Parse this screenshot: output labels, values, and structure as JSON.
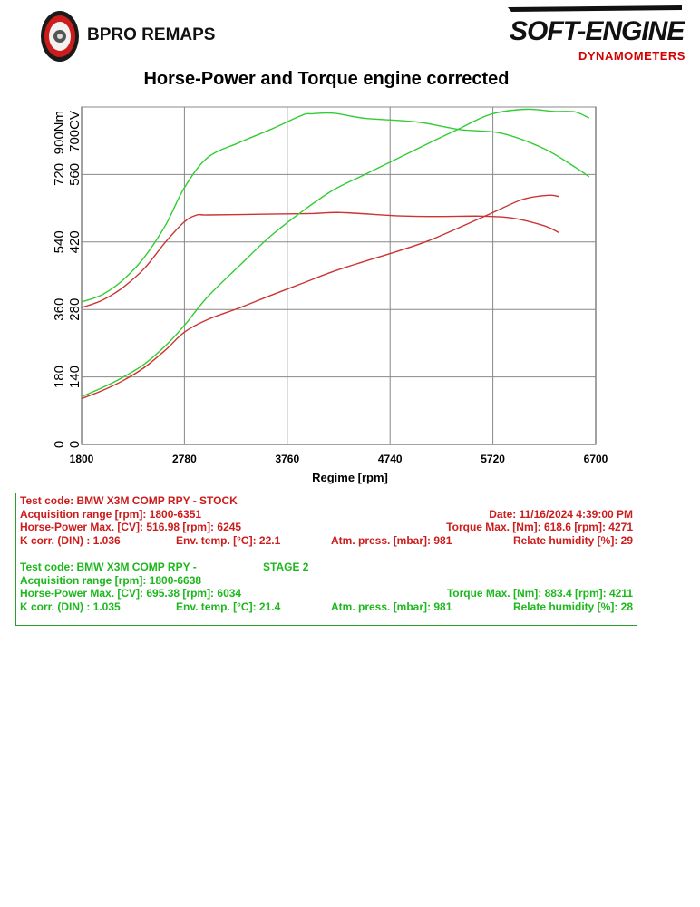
{
  "header": {
    "left_logo_text": "BPRO REMAPS",
    "right_logo_text": "SOFT-ENGINE",
    "right_logo_sub": "DYNAMOMETERS"
  },
  "chart_data": {
    "type": "line",
    "title": "Horse-Power and Torque engine corrected",
    "xlabel": "Regime [rpm]",
    "ylabel_torque": "900Nm",
    "ylabel_power": "700CV",
    "xlim": [
      1800,
      6700
    ],
    "x_ticks": [
      "1800",
      "2780",
      "3760",
      "4740",
      "5720",
      "6700"
    ],
    "ylim_torque": [
      0,
      900
    ],
    "ylim_power": [
      0,
      700
    ],
    "y_ticks_torque": [
      "0",
      "180",
      "360",
      "540",
      "720"
    ],
    "y_ticks_power": [
      "0",
      "140",
      "280",
      "420",
      "560"
    ],
    "grid": true,
    "series": [
      {
        "axis": "power",
        "color": "#cc3333",
        "x": [
          1800,
          2000,
          2200,
          2400,
          2600,
          2780,
          3000,
          3300,
          3600,
          3900,
          4200,
          4500,
          4800,
          5100,
          5400,
          5700,
          6000,
          6245,
          6351
        ],
        "y": [
          95,
          112,
          133,
          160,
          196,
          233,
          259,
          283,
          309,
          334,
          359,
          380,
          400,
          422,
          450,
          479,
          508,
          517,
          514
        ]
      },
      {
        "axis": "torque",
        "color": "#cc3333",
        "x": [
          1800,
          2000,
          2200,
          2400,
          2600,
          2780,
          2900,
          3000,
          3500,
          4000,
          4271,
          4800,
          5200,
          5600,
          5900,
          6200,
          6351
        ],
        "y": [
          365,
          385,
          420,
          470,
          540,
          594,
          612,
          612,
          614,
          616,
          618.6,
          610,
          608,
          609,
          604,
          584,
          565
        ]
      },
      {
        "axis": "power",
        "color": "#33cc33",
        "x": [
          1800,
          2000,
          2200,
          2400,
          2600,
          2780,
          3000,
          3300,
          3600,
          3900,
          4200,
          4500,
          4800,
          5100,
          5400,
          5700,
          6034,
          6300,
          6500,
          6638
        ],
        "y": [
          99,
          118,
          140,
          167,
          205,
          247,
          306,
          370,
          432,
          483,
          528,
          560,
          592,
          624,
          655,
          685,
          695.38,
          691,
          690,
          677
        ]
      },
      {
        "axis": "torque",
        "color": "#33cc33",
        "x": [
          1800,
          2000,
          2200,
          2400,
          2600,
          2780,
          3000,
          3300,
          3600,
          3900,
          4000,
          4211,
          4500,
          5000,
          5400,
          5800,
          6200,
          6500,
          6638
        ],
        "y": [
          380,
          400,
          440,
          500,
          585,
          685,
          765,
          805,
          840,
          878,
          882,
          883.4,
          870,
          860,
          840,
          830,
          790,
          740,
          714
        ]
      }
    ]
  },
  "info": {
    "stock": {
      "test_code": "Test code: BMW X3M COMP RPY - STOCK",
      "acq_range": "Acquisition range [rpm]: 1800-6351",
      "date": "Date: 11/16/2024   4:39:00 PM",
      "hp_max": "Horse-Power Max. [CV]: 516.98   [rpm]: 6245",
      "torque_max": "Torque Max. [Nm]: 618.6   [rpm]: 4271",
      "k_corr": "K corr. (DIN) : 1.036",
      "env_temp": "Env. temp. [°C]: 22.1",
      "atm_press": "Atm. press. [mbar]: 981",
      "humidity": "Relate humidity [%]: 29"
    },
    "stage": {
      "test_code": "Test code: BMW X3M COMP RPY -",
      "stage_label": "STAGE 2",
      "acq_range": "Acquisition range [rpm]: 1800-6638",
      "hp_max": "Horse-Power Max. [CV]: 695.38   [rpm]: 6034",
      "torque_max": "Torque Max. [Nm]: 883.4   [rpm]: 4211",
      "k_corr": "K corr. (DIN) : 1.035",
      "env_temp": "Env. temp. [°C]: 21.4",
      "atm_press": "Atm. press. [mbar]: 981",
      "humidity": "Relate humidity [%]: 28"
    }
  }
}
